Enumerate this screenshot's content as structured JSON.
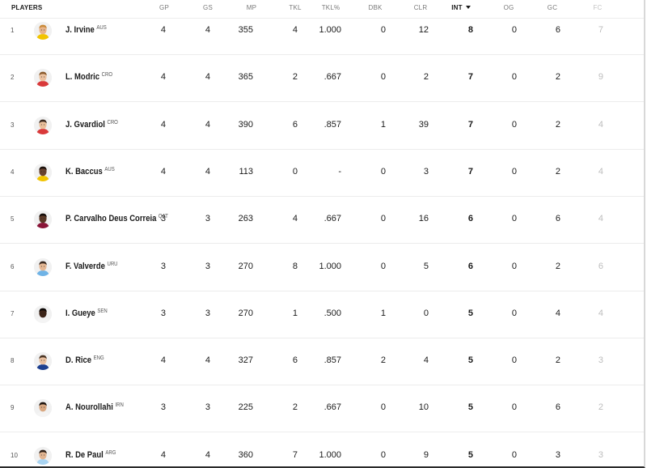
{
  "table": {
    "headers": [
      {
        "key": "players",
        "label": "PLAYERS"
      },
      {
        "key": "gp",
        "label": "GP"
      },
      {
        "key": "gs",
        "label": "GS"
      },
      {
        "key": "mp",
        "label": "MP"
      },
      {
        "key": "tkl",
        "label": "TKL"
      },
      {
        "key": "tklpct",
        "label": "TKL%"
      },
      {
        "key": "dbk",
        "label": "DBK"
      },
      {
        "key": "clr",
        "label": "CLR"
      },
      {
        "key": "int",
        "label": "INT",
        "sorted": "desc"
      },
      {
        "key": "og",
        "label": "OG"
      },
      {
        "key": "gc",
        "label": "GC"
      },
      {
        "key": "fc",
        "label": "FC"
      }
    ],
    "rows": [
      {
        "rank": "1",
        "name": "J. Irvine",
        "nation": "AUS",
        "gp": "4",
        "gs": "4",
        "mp": "355",
        "tkl": "4",
        "tklpct": "1.000",
        "dbk": "0",
        "clr": "12",
        "int": "8",
        "og": "0",
        "gc": "6",
        "fc": "7",
        "skin": "#e8b48a",
        "hair": "#c98a3a",
        "shirt": "#f2c400"
      },
      {
        "rank": "2",
        "name": "L. Modric",
        "nation": "CRO",
        "gp": "4",
        "gs": "4",
        "mp": "365",
        "tkl": "2",
        "tklpct": ".667",
        "dbk": "0",
        "clr": "2",
        "int": "7",
        "og": "0",
        "gc": "2",
        "fc": "9",
        "skin": "#ecc2a0",
        "hair": "#8a5a2c",
        "shirt": "#d9393a"
      },
      {
        "rank": "3",
        "name": "J. Gvardiol",
        "nation": "CRO",
        "gp": "4",
        "gs": "4",
        "mp": "390",
        "tkl": "6",
        "tklpct": ".857",
        "dbk": "1",
        "clr": "39",
        "int": "7",
        "og": "0",
        "gc": "2",
        "fc": "4",
        "skin": "#e9bf9b",
        "hair": "#3b2a20",
        "shirt": "#d9393a"
      },
      {
        "rank": "4",
        "name": "K. Baccus",
        "nation": "AUS",
        "gp": "4",
        "gs": "4",
        "mp": "113",
        "tkl": "0",
        "tklpct": "-",
        "dbk": "0",
        "clr": "3",
        "int": "7",
        "og": "0",
        "gc": "2",
        "fc": "4",
        "skin": "#6a4330",
        "hair": "#1c120c",
        "shirt": "#f2c400"
      },
      {
        "rank": "5",
        "name": "P. Carvalho Deus Correia",
        "nation": "QAT",
        "gp": "3",
        "gs": "3",
        "mp": "263",
        "tkl": "4",
        "tklpct": ".667",
        "dbk": "0",
        "clr": "16",
        "int": "6",
        "og": "0",
        "gc": "6",
        "fc": "4",
        "skin": "#5a3826",
        "hair": "#140c08",
        "shirt": "#8a1538"
      },
      {
        "rank": "6",
        "name": "F. Valverde",
        "nation": "URU",
        "gp": "3",
        "gs": "3",
        "mp": "270",
        "tkl": "8",
        "tklpct": "1.000",
        "dbk": "0",
        "clr": "5",
        "int": "6",
        "og": "0",
        "gc": "2",
        "fc": "6",
        "skin": "#e6b894",
        "hair": "#3a2a20",
        "shirt": "#6fb3e6"
      },
      {
        "rank": "7",
        "name": "I. Gueye",
        "nation": "SEN",
        "gp": "3",
        "gs": "3",
        "mp": "270",
        "tkl": "1",
        "tklpct": ".500",
        "dbk": "1",
        "clr": "0",
        "int": "5",
        "og": "0",
        "gc": "4",
        "fc": "4",
        "skin": "#3d2418",
        "hair": "#0e0806",
        "shirt": "#f4f4f4"
      },
      {
        "rank": "8",
        "name": "D. Rice",
        "nation": "ENG",
        "gp": "4",
        "gs": "4",
        "mp": "327",
        "tkl": "6",
        "tklpct": ".857",
        "dbk": "2",
        "clr": "4",
        "int": "5",
        "og": "0",
        "gc": "2",
        "fc": "3",
        "skin": "#e9c0a0",
        "hair": "#4a3424",
        "shirt": "#1d3f8f"
      },
      {
        "rank": "9",
        "name": "A. Nourollahi",
        "nation": "IRN",
        "gp": "3",
        "gs": "3",
        "mp": "225",
        "tkl": "2",
        "tklpct": ".667",
        "dbk": "0",
        "clr": "10",
        "int": "5",
        "og": "0",
        "gc": "6",
        "fc": "2",
        "skin": "#d9a882",
        "hair": "#1e140e",
        "shirt": "#f4f4f4"
      },
      {
        "rank": "10",
        "name": "R. De Paul",
        "nation": "ARG",
        "gp": "4",
        "gs": "4",
        "mp": "360",
        "tkl": "7",
        "tklpct": "1.000",
        "dbk": "0",
        "clr": "9",
        "int": "5",
        "og": "0",
        "gc": "3",
        "fc": "3",
        "skin": "#e2b592",
        "hair": "#2e2018",
        "shirt": "#a9d4f2"
      }
    ]
  }
}
